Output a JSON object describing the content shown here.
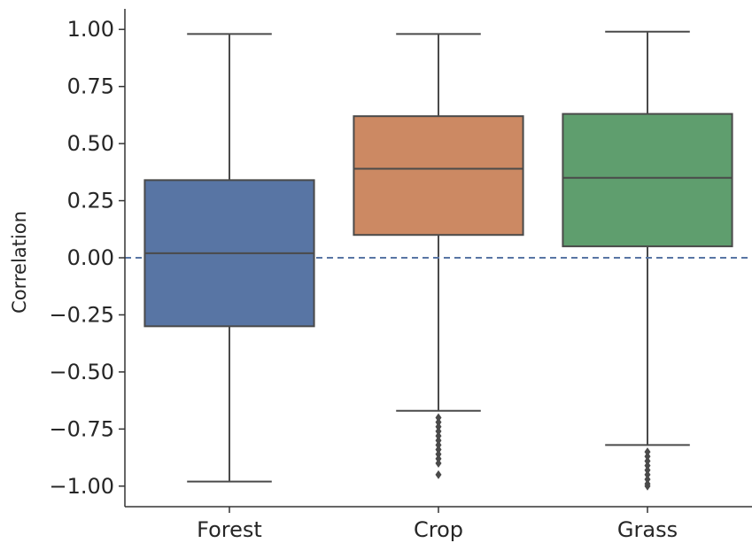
{
  "chart_data": {
    "type": "box",
    "title": "",
    "xlabel": "",
    "ylabel": "Correlation",
    "ylim": [
      -1.09,
      1.09
    ],
    "yticks": [
      1.0,
      0.75,
      0.5,
      0.25,
      0.0,
      -0.25,
      -0.5,
      -0.75,
      -1.0
    ],
    "ytick_labels": [
      "1.00",
      "0.75",
      "0.50",
      "0.25",
      "0.00",
      "−0.25",
      "−0.50",
      "−0.75",
      "−1.00"
    ],
    "categories": [
      "Forest",
      "Crop",
      "Grass"
    ],
    "colors": [
      "#5875a4",
      "#cc8963",
      "#5f9e6e"
    ],
    "edge_color": "#4a4a4a",
    "reference_line": {
      "y": 0.0,
      "style": "dashed",
      "color": "#5875a4"
    },
    "grid": false,
    "boxes": [
      {
        "category": "Forest",
        "whisker_low": -0.98,
        "q1": -0.3,
        "median": 0.02,
        "q3": 0.34,
        "whisker_high": 0.98,
        "outliers": []
      },
      {
        "category": "Crop",
        "whisker_low": -0.67,
        "q1": 0.1,
        "median": 0.39,
        "q3": 0.62,
        "whisker_high": 0.98,
        "outliers": [
          -0.7,
          -0.72,
          -0.74,
          -0.76,
          -0.78,
          -0.8,
          -0.82,
          -0.84,
          -0.86,
          -0.88,
          -0.9,
          -0.95
        ]
      },
      {
        "category": "Grass",
        "whisker_low": -0.82,
        "q1": 0.05,
        "median": 0.35,
        "q3": 0.63,
        "whisker_high": 0.99,
        "outliers": [
          -0.85,
          -0.87,
          -0.89,
          -0.91,
          -0.93,
          -0.95,
          -0.97,
          -0.99,
          -1.0
        ]
      }
    ]
  }
}
